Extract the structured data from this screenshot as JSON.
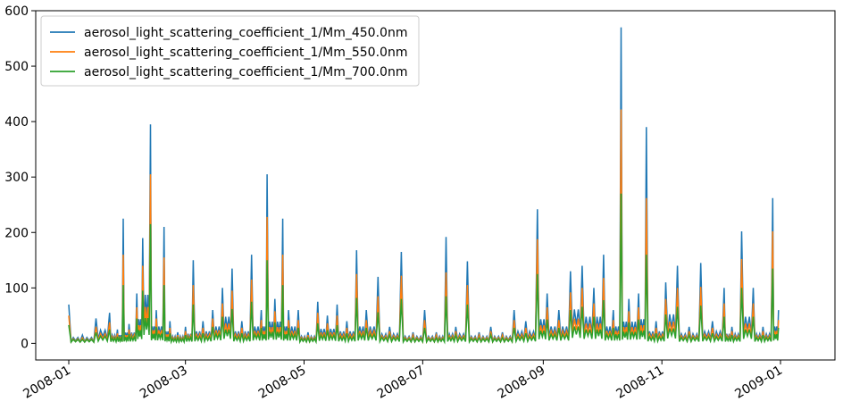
{
  "chart_data": {
    "type": "line",
    "title": "",
    "xlabel": "",
    "ylabel": "",
    "ylim": [
      -30,
      600
    ],
    "xlim": [
      "2007-12-15",
      "2009-01-29"
    ],
    "grid": false,
    "legend_position": "top-left",
    "x_ticks": [
      "2008-01",
      "2008-03",
      "2008-05",
      "2008-07",
      "2008-09",
      "2008-11",
      "2009-01"
    ],
    "y_ticks": [
      0,
      100,
      200,
      300,
      400,
      500,
      600
    ],
    "x": [
      "2008-01-01",
      "2008-01-08",
      "2008-01-15",
      "2008-01-22",
      "2008-01-26",
      "2008-01-29",
      "2008-02-01",
      "2008-02-05",
      "2008-02-08",
      "2008-02-12",
      "2008-02-15",
      "2008-02-19",
      "2008-02-22",
      "2008-02-26",
      "2008-03-01",
      "2008-03-05",
      "2008-03-10",
      "2008-03-15",
      "2008-03-20",
      "2008-03-25",
      "2008-03-30",
      "2008-04-04",
      "2008-04-09",
      "2008-04-12",
      "2008-04-16",
      "2008-04-20",
      "2008-04-23",
      "2008-04-28",
      "2008-05-03",
      "2008-05-08",
      "2008-05-13",
      "2008-05-18",
      "2008-05-23",
      "2008-05-28",
      "2008-06-02",
      "2008-06-08",
      "2008-06-14",
      "2008-06-20",
      "2008-06-26",
      "2008-07-02",
      "2008-07-08",
      "2008-07-13",
      "2008-07-18",
      "2008-07-24",
      "2008-07-30",
      "2008-08-05",
      "2008-08-11",
      "2008-08-17",
      "2008-08-23",
      "2008-08-29",
      "2008-09-03",
      "2008-09-09",
      "2008-09-15",
      "2008-09-21",
      "2008-09-27",
      "2008-10-02",
      "2008-10-07",
      "2008-10-11",
      "2008-10-15",
      "2008-10-20",
      "2008-10-24",
      "2008-10-29",
      "2008-11-03",
      "2008-11-09",
      "2008-11-15",
      "2008-11-21",
      "2008-11-27",
      "2008-12-03",
      "2008-12-07",
      "2008-12-12",
      "2008-12-18",
      "2008-12-23",
      "2008-12-28",
      "2008-12-31"
    ],
    "series": [
      {
        "name": "aerosol_light_scattering_coefficient_1/Mm_450.0nm",
        "color": "#1f77b4",
        "values": [
          70,
          15,
          45,
          55,
          25,
          225,
          35,
          90,
          190,
          395,
          60,
          210,
          40,
          20,
          30,
          150,
          40,
          60,
          100,
          135,
          40,
          160,
          60,
          305,
          80,
          225,
          60,
          60,
          20,
          75,
          50,
          70,
          40,
          168,
          60,
          120,
          30,
          165,
          20,
          60,
          20,
          192,
          30,
          148,
          20,
          30,
          20,
          60,
          40,
          242,
          90,
          60,
          130,
          140,
          100,
          160,
          60,
          570,
          80,
          90,
          390,
          40,
          110,
          140,
          30,
          145,
          40,
          100,
          30,
          202,
          100,
          30,
          262,
          60
        ]
      },
      {
        "name": "aerosol_light_scattering_coefficient_1/Mm_550.0nm",
        "color": "#ff7f0e",
        "values": [
          50,
          10,
          30,
          38,
          18,
          160,
          25,
          65,
          140,
          305,
          45,
          155,
          28,
          15,
          22,
          105,
          28,
          45,
          72,
          95,
          28,
          115,
          42,
          228,
          58,
          160,
          42,
          42,
          15,
          55,
          36,
          50,
          28,
          125,
          42,
          85,
          22,
          122,
          15,
          42,
          15,
          128,
          22,
          105,
          15,
          22,
          15,
          42,
          28,
          188,
          65,
          42,
          92,
          100,
          72,
          118,
          42,
          422,
          58,
          65,
          262,
          28,
          80,
          100,
          22,
          102,
          28,
          72,
          22,
          152,
          72,
          22,
          202,
          42
        ]
      },
      {
        "name": "aerosol_light_scattering_coefficient_1/Mm_700.0nm",
        "color": "#2ca02c",
        "values": [
          33,
          7,
          20,
          25,
          12,
          105,
          17,
          45,
          95,
          215,
          30,
          105,
          18,
          10,
          15,
          70,
          18,
          30,
          48,
          62,
          18,
          75,
          28,
          150,
          38,
          105,
          28,
          28,
          10,
          36,
          24,
          33,
          18,
          82,
          28,
          56,
          15,
          80,
          10,
          28,
          10,
          85,
          15,
          70,
          10,
          15,
          10,
          28,
          18,
          125,
          43,
          28,
          60,
          66,
          48,
          78,
          28,
          270,
          38,
          43,
          160,
          18,
          52,
          66,
          15,
          68,
          18,
          48,
          15,
          100,
          48,
          15,
          135,
          28
        ]
      }
    ]
  }
}
